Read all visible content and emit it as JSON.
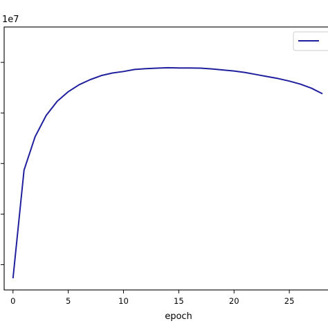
{
  "chart_data": {
    "type": "line",
    "title": "",
    "xlabel": "epoch",
    "ylabel": "",
    "y_offset_label": "1e7",
    "x_ticks": [
      0,
      5,
      10,
      15,
      20,
      25
    ],
    "xlim": [
      -0.8,
      28.5
    ],
    "ylim": [
      0.5,
      5.7
    ],
    "grid": false,
    "legend": "top-right",
    "colors": {
      "line": "#1f1f9e",
      "axes": "#000000",
      "background": "#ffffff"
    },
    "series": [
      {
        "x": [
          0,
          1,
          2,
          3,
          4,
          5,
          6,
          7,
          8,
          9,
          10,
          11,
          12,
          13,
          14,
          15,
          16,
          17,
          18,
          19,
          20,
          21,
          22,
          23,
          24,
          25,
          26,
          27,
          28
        ],
        "values": [
          0.73,
          2.87,
          3.53,
          3.95,
          4.23,
          4.42,
          4.56,
          4.66,
          4.74,
          4.79,
          4.82,
          4.86,
          4.875,
          4.885,
          4.895,
          4.89,
          4.89,
          4.885,
          4.87,
          4.85,
          4.83,
          4.8,
          4.76,
          4.72,
          4.68,
          4.63,
          4.57,
          4.49,
          4.38
        ]
      }
    ]
  }
}
